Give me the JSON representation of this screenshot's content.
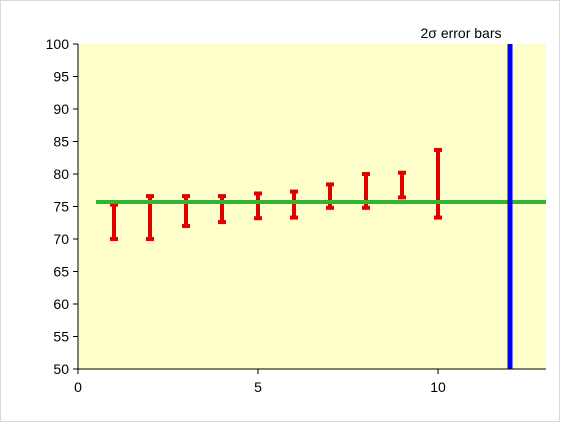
{
  "chart_data": {
    "type": "scatter",
    "title": "2σ error bars",
    "xlabel": "",
    "ylabel": "",
    "xlim": [
      0,
      13
    ],
    "ylim": [
      50,
      100
    ],
    "x_ticks": [
      0,
      5,
      10
    ],
    "y_ticks": [
      50,
      55,
      60,
      65,
      70,
      75,
      80,
      85,
      90,
      95,
      100
    ],
    "grid": false,
    "plot_background": "#ffffcc",
    "error_bar_color": "#e00000",
    "reference_line": {
      "y": 75.7,
      "x_start": 0.5,
      "x_end": 13,
      "color": "#33b533"
    },
    "vertical_line": {
      "x": 12,
      "color": "#0000ee"
    },
    "error_bars": [
      {
        "x": 1,
        "low": 70.0,
        "high": 75.3
      },
      {
        "x": 2,
        "low": 70.0,
        "high": 76.6
      },
      {
        "x": 3,
        "low": 72.0,
        "high": 76.6
      },
      {
        "x": 4,
        "low": 72.6,
        "high": 76.6
      },
      {
        "x": 5,
        "low": 73.2,
        "high": 77.0
      },
      {
        "x": 6,
        "low": 73.3,
        "high": 77.3
      },
      {
        "x": 7,
        "low": 74.8,
        "high": 78.4
      },
      {
        "x": 8,
        "low": 74.8,
        "high": 80.0
      },
      {
        "x": 9,
        "low": 76.4,
        "high": 80.2
      },
      {
        "x": 10,
        "low": 73.3,
        "high": 83.7
      }
    ]
  }
}
